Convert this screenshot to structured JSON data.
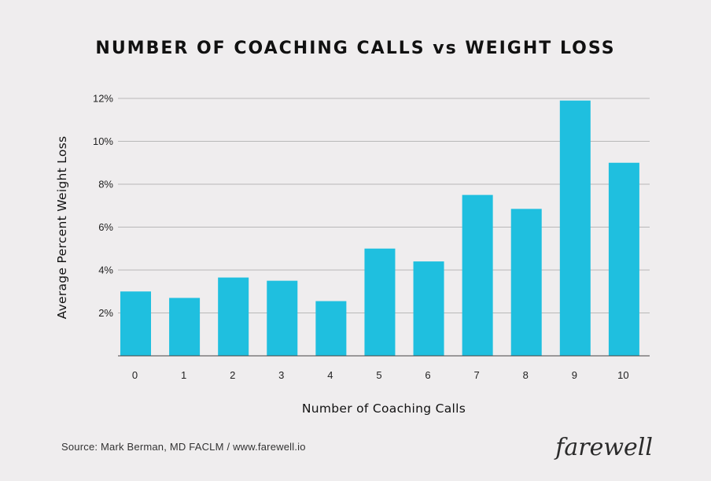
{
  "chart_data": {
    "type": "bar",
    "title": "NUMBER OF COACHING CALLS vs WEIGHT LOSS",
    "xlabel": "Number of Coaching Calls",
    "ylabel": "Average Percent Weight Loss",
    "categories": [
      "0",
      "1",
      "2",
      "3",
      "4",
      "5",
      "6",
      "7",
      "8",
      "9",
      "10"
    ],
    "values": [
      3.0,
      2.7,
      3.65,
      3.5,
      2.55,
      5.0,
      4.4,
      7.5,
      6.85,
      11.9,
      9.0
    ],
    "ylim": [
      0,
      12
    ],
    "yticks": [
      2,
      4,
      6,
      8,
      10,
      12
    ],
    "ytick_labels": [
      "2%",
      "4%",
      "6%",
      "8%",
      "10%",
      "12%"
    ],
    "grid": true,
    "bar_color": "#1fbfdf"
  },
  "footer": {
    "source": "Source: Mark Berman, MD FACLM / www.farewell.io",
    "brand": "farewell"
  }
}
